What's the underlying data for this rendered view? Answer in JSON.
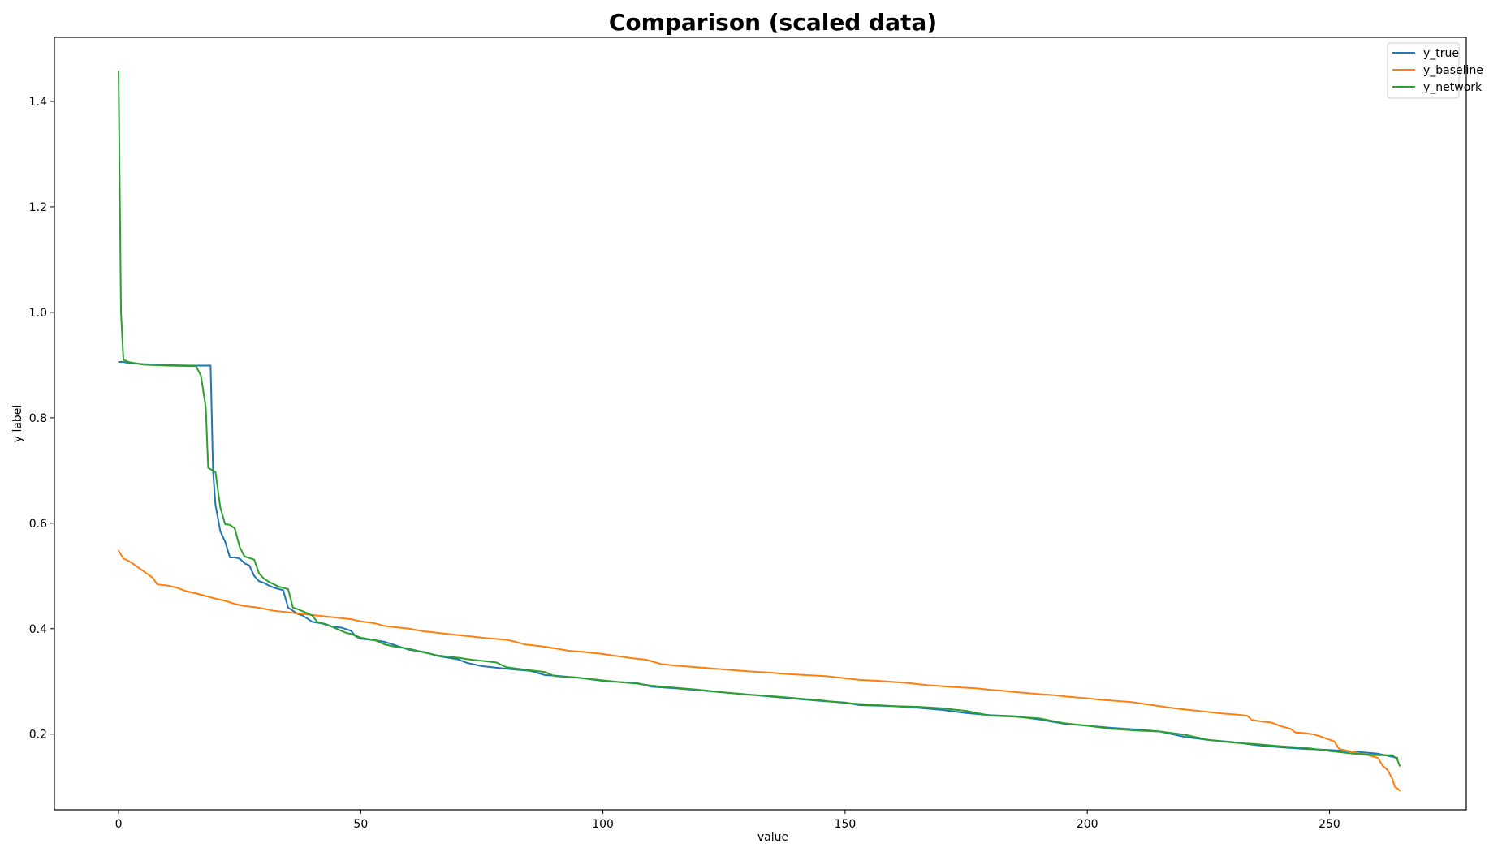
{
  "chart_data": {
    "type": "line",
    "title": "Comparison (scaled data)",
    "xlabel": "value",
    "ylabel": "y label",
    "xlim": [
      -13.25,
      278.25
    ],
    "ylim": [
      0.0565,
      1.5215
    ],
    "xticks": [
      0,
      50,
      100,
      150,
      200,
      250
    ],
    "yticks": [
      0.2,
      0.4,
      0.6,
      0.8,
      1.0,
      1.2,
      1.4
    ],
    "xtick_labels": [
      "0",
      "50",
      "100",
      "150",
      "200",
      "250"
    ],
    "ytick_labels": [
      "0.2",
      "0.4",
      "0.6",
      "0.8",
      "1.0",
      "1.2",
      "1.4"
    ],
    "grid": false,
    "legend_position": "upper right",
    "series": [
      {
        "name": "y_true",
        "color": "#1f77b4",
        "points": [
          [
            0,
            0.906
          ],
          [
            1,
            0.906
          ],
          [
            2,
            0.904
          ],
          [
            5,
            0.902
          ],
          [
            10,
            0.9
          ],
          [
            15,
            0.899
          ],
          [
            18,
            0.899
          ],
          [
            19,
            0.899
          ],
          [
            19.5,
            0.7
          ],
          [
            20,
            0.635
          ],
          [
            21,
            0.585
          ],
          [
            22,
            0.565
          ],
          [
            23,
            0.535
          ],
          [
            24,
            0.535
          ],
          [
            25,
            0.533
          ],
          [
            26,
            0.524
          ],
          [
            27,
            0.52
          ],
          [
            28,
            0.5
          ],
          [
            29,
            0.49
          ],
          [
            30,
            0.487
          ],
          [
            31,
            0.482
          ],
          [
            32,
            0.478
          ],
          [
            34,
            0.473
          ],
          [
            35,
            0.44
          ],
          [
            37,
            0.428
          ],
          [
            38,
            0.425
          ],
          [
            40,
            0.413
          ],
          [
            42,
            0.41
          ],
          [
            44,
            0.404
          ],
          [
            46,
            0.402
          ],
          [
            48,
            0.396
          ],
          [
            49,
            0.385
          ],
          [
            50,
            0.381
          ],
          [
            53,
            0.378
          ],
          [
            55,
            0.375
          ],
          [
            57,
            0.369
          ],
          [
            60,
            0.36
          ],
          [
            63,
            0.356
          ],
          [
            66,
            0.348
          ],
          [
            70,
            0.342
          ],
          [
            72,
            0.335
          ],
          [
            75,
            0.329
          ],
          [
            78,
            0.326
          ],
          [
            80,
            0.324
          ],
          [
            85,
            0.32
          ],
          [
            88,
            0.312
          ],
          [
            90,
            0.311
          ],
          [
            95,
            0.307
          ],
          [
            100,
            0.301
          ],
          [
            103,
            0.299
          ],
          [
            107,
            0.297
          ],
          [
            110,
            0.29
          ],
          [
            115,
            0.287
          ],
          [
            120,
            0.283
          ],
          [
            125,
            0.279
          ],
          [
            130,
            0.275
          ],
          [
            135,
            0.271
          ],
          [
            140,
            0.267
          ],
          [
            145,
            0.263
          ],
          [
            150,
            0.26
          ],
          [
            153,
            0.255
          ],
          [
            160,
            0.253
          ],
          [
            165,
            0.25
          ],
          [
            170,
            0.246
          ],
          [
            175,
            0.24
          ],
          [
            180,
            0.236
          ],
          [
            185,
            0.234
          ],
          [
            190,
            0.228
          ],
          [
            195,
            0.22
          ],
          [
            200,
            0.216
          ],
          [
            205,
            0.212
          ],
          [
            210,
            0.209
          ],
          [
            215,
            0.205
          ],
          [
            220,
            0.195
          ],
          [
            225,
            0.189
          ],
          [
            230,
            0.185
          ],
          [
            235,
            0.179
          ],
          [
            240,
            0.175
          ],
          [
            245,
            0.172
          ],
          [
            250,
            0.17
          ],
          [
            255,
            0.167
          ],
          [
            260,
            0.163
          ],
          [
            264,
            0.155
          ]
        ]
      },
      {
        "name": "y_baseline",
        "color": "#ff7f0e",
        "points": [
          [
            0,
            0.548
          ],
          [
            1,
            0.533
          ],
          [
            2,
            0.529
          ],
          [
            3,
            0.523
          ],
          [
            5,
            0.51
          ],
          [
            7,
            0.497
          ],
          [
            8,
            0.484
          ],
          [
            10,
            0.482
          ],
          [
            12,
            0.478
          ],
          [
            14,
            0.471
          ],
          [
            16,
            0.467
          ],
          [
            18,
            0.462
          ],
          [
            20,
            0.457
          ],
          [
            22,
            0.453
          ],
          [
            24,
            0.447
          ],
          [
            26,
            0.443
          ],
          [
            28,
            0.441
          ],
          [
            30,
            0.438
          ],
          [
            32,
            0.434
          ],
          [
            35,
            0.431
          ],
          [
            38,
            0.428
          ],
          [
            40,
            0.426
          ],
          [
            43,
            0.423
          ],
          [
            45,
            0.421
          ],
          [
            48,
            0.418
          ],
          [
            50,
            0.414
          ],
          [
            53,
            0.41
          ],
          [
            55,
            0.405
          ],
          [
            58,
            0.402
          ],
          [
            60,
            0.4
          ],
          [
            63,
            0.395
          ],
          [
            66,
            0.392
          ],
          [
            70,
            0.388
          ],
          [
            73,
            0.385
          ],
          [
            76,
            0.382
          ],
          [
            80,
            0.379
          ],
          [
            82,
            0.375
          ],
          [
            84,
            0.37
          ],
          [
            87,
            0.367
          ],
          [
            90,
            0.363
          ],
          [
            93,
            0.358
          ],
          [
            96,
            0.356
          ],
          [
            100,
            0.352
          ],
          [
            103,
            0.348
          ],
          [
            106,
            0.344
          ],
          [
            109,
            0.341
          ],
          [
            112,
            0.333
          ],
          [
            115,
            0.33
          ],
          [
            118,
            0.328
          ],
          [
            122,
            0.325
          ],
          [
            126,
            0.322
          ],
          [
            130,
            0.319
          ],
          [
            134,
            0.317
          ],
          [
            138,
            0.314
          ],
          [
            142,
            0.312
          ],
          [
            146,
            0.31
          ],
          [
            150,
            0.306
          ],
          [
            153,
            0.303
          ],
          [
            157,
            0.301
          ],
          [
            160,
            0.299
          ],
          [
            163,
            0.297
          ],
          [
            167,
            0.293
          ],
          [
            170,
            0.291
          ],
          [
            173,
            0.289
          ],
          [
            177,
            0.287
          ],
          [
            180,
            0.284
          ],
          [
            183,
            0.282
          ],
          [
            186,
            0.279
          ],
          [
            190,
            0.276
          ],
          [
            193,
            0.274
          ],
          [
            196,
            0.271
          ],
          [
            200,
            0.268
          ],
          [
            203,
            0.265
          ],
          [
            206,
            0.263
          ],
          [
            209,
            0.261
          ],
          [
            212,
            0.257
          ],
          [
            215,
            0.253
          ],
          [
            218,
            0.249
          ],
          [
            221,
            0.246
          ],
          [
            224,
            0.243
          ],
          [
            228,
            0.239
          ],
          [
            231,
            0.237
          ],
          [
            233,
            0.235
          ],
          [
            234,
            0.227
          ],
          [
            236,
            0.224
          ],
          [
            238,
            0.222
          ],
          [
            240,
            0.215
          ],
          [
            242,
            0.21
          ],
          [
            243,
            0.203
          ],
          [
            245,
            0.202
          ],
          [
            247,
            0.199
          ],
          [
            249,
            0.193
          ],
          [
            251,
            0.186
          ],
          [
            252,
            0.172
          ],
          [
            254,
            0.168
          ],
          [
            256,
            0.164
          ],
          [
            258,
            0.16
          ],
          [
            260,
            0.155
          ],
          [
            261,
            0.14
          ],
          [
            262,
            0.132
          ],
          [
            263,
            0.115
          ],
          [
            263.5,
            0.1
          ],
          [
            264,
            0.097
          ],
          [
            264.5,
            0.093
          ]
        ]
      },
      {
        "name": "y_network",
        "color": "#2ca02c",
        "points": [
          [
            0,
            1.457
          ],
          [
            0.5,
            1.0
          ],
          [
            1,
            0.91
          ],
          [
            2,
            0.906
          ],
          [
            5,
            0.901
          ],
          [
            10,
            0.899
          ],
          [
            15,
            0.898
          ],
          [
            16,
            0.898
          ],
          [
            17,
            0.88
          ],
          [
            18,
            0.82
          ],
          [
            18.5,
            0.705
          ],
          [
            20,
            0.697
          ],
          [
            21,
            0.63
          ],
          [
            22,
            0.598
          ],
          [
            23,
            0.597
          ],
          [
            24,
            0.59
          ],
          [
            25,
            0.555
          ],
          [
            26,
            0.537
          ],
          [
            27,
            0.534
          ],
          [
            28,
            0.531
          ],
          [
            29,
            0.505
          ],
          [
            30,
            0.495
          ],
          [
            31,
            0.489
          ],
          [
            33,
            0.48
          ],
          [
            35,
            0.475
          ],
          [
            36,
            0.44
          ],
          [
            37,
            0.437
          ],
          [
            38,
            0.433
          ],
          [
            40,
            0.425
          ],
          [
            41,
            0.413
          ],
          [
            43,
            0.408
          ],
          [
            45,
            0.4
          ],
          [
            47,
            0.392
          ],
          [
            48,
            0.39
          ],
          [
            50,
            0.383
          ],
          [
            53,
            0.378
          ],
          [
            55,
            0.37
          ],
          [
            57,
            0.366
          ],
          [
            60,
            0.362
          ],
          [
            63,
            0.355
          ],
          [
            66,
            0.349
          ],
          [
            70,
            0.345
          ],
          [
            73,
            0.341
          ],
          [
            75,
            0.339
          ],
          [
            78,
            0.336
          ],
          [
            80,
            0.327
          ],
          [
            85,
            0.321
          ],
          [
            88,
            0.318
          ],
          [
            90,
            0.31
          ],
          [
            95,
            0.307
          ],
          [
            100,
            0.302
          ],
          [
            103,
            0.299
          ],
          [
            107,
            0.296
          ],
          [
            110,
            0.292
          ],
          [
            115,
            0.288
          ],
          [
            120,
            0.284
          ],
          [
            125,
            0.279
          ],
          [
            130,
            0.275
          ],
          [
            135,
            0.272
          ],
          [
            140,
            0.268
          ],
          [
            145,
            0.264
          ],
          [
            150,
            0.259
          ],
          [
            155,
            0.256
          ],
          [
            160,
            0.253
          ],
          [
            165,
            0.252
          ],
          [
            170,
            0.249
          ],
          [
            175,
            0.244
          ],
          [
            180,
            0.235
          ],
          [
            185,
            0.233
          ],
          [
            190,
            0.23
          ],
          [
            195,
            0.221
          ],
          [
            200,
            0.216
          ],
          [
            205,
            0.21
          ],
          [
            210,
            0.207
          ],
          [
            215,
            0.205
          ],
          [
            220,
            0.199
          ],
          [
            225,
            0.189
          ],
          [
            230,
            0.184
          ],
          [
            235,
            0.181
          ],
          [
            240,
            0.177
          ],
          [
            245,
            0.174
          ],
          [
            250,
            0.168
          ],
          [
            255,
            0.163
          ],
          [
            260,
            0.16
          ],
          [
            263,
            0.16
          ],
          [
            264,
            0.152
          ],
          [
            264.5,
            0.14
          ]
        ]
      }
    ]
  }
}
